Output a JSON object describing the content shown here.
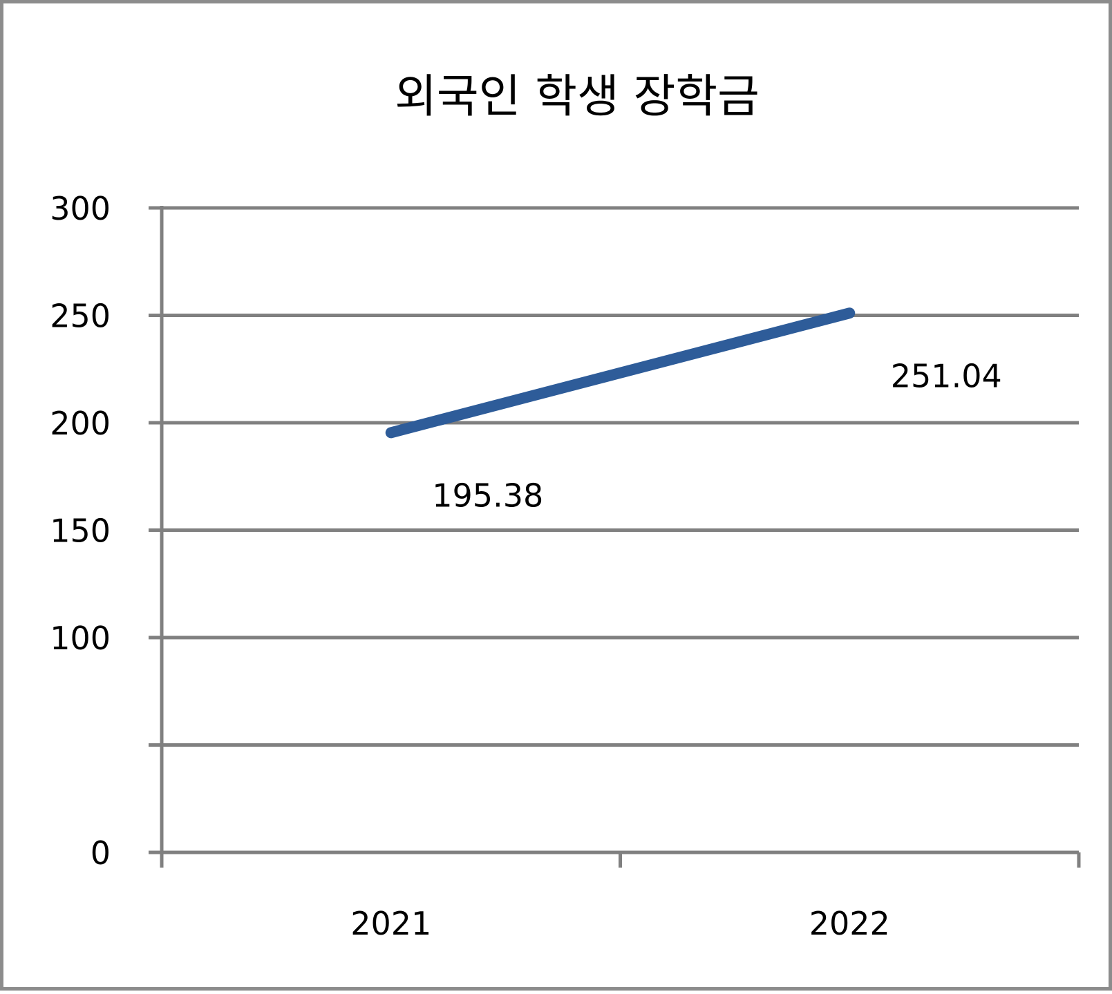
{
  "chart_data": {
    "type": "line",
    "title": "외국인 학생 장학금",
    "xlabel": "",
    "ylabel": "",
    "categories": [
      "2021",
      "2022"
    ],
    "series": [
      {
        "values": [
          195.38,
          251.04
        ],
        "data_labels": [
          "195.38",
          "251.04"
        ],
        "color": "#2e5c99"
      }
    ],
    "ylim": [
      0,
      300
    ],
    "y_gridlines": [
      0,
      50,
      100,
      150,
      200,
      250,
      300
    ],
    "y_tick_labels": [
      {
        "value": 0,
        "label": "0"
      },
      {
        "value": 100,
        "label": "100"
      },
      {
        "value": 150,
        "label": "150"
      },
      {
        "value": 200,
        "label": "200"
      },
      {
        "value": 250,
        "label": "250"
      },
      {
        "value": 300,
        "label": "300"
      }
    ],
    "grid": true,
    "legend": "none",
    "colors": {
      "line": "#2e5c99",
      "grid": "#808080",
      "axis": "#808080",
      "frame": "#8c8c8c"
    }
  }
}
